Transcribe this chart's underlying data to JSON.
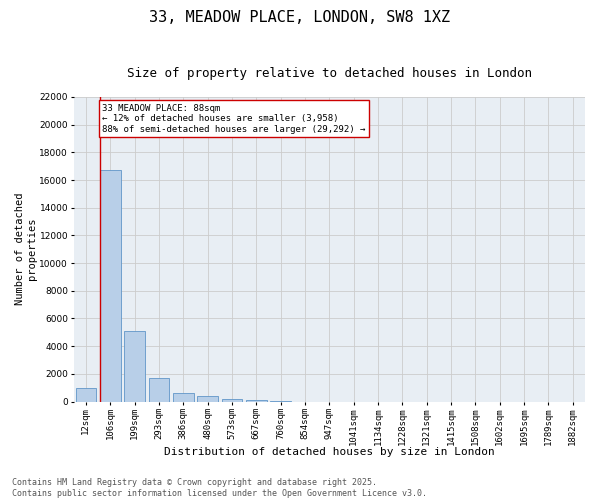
{
  "title": "33, MEADOW PLACE, LONDON, SW8 1XZ",
  "subtitle": "Size of property relative to detached houses in London",
  "xlabel": "Distribution of detached houses by size in London",
  "ylabel": "Number of detached\nproperties",
  "categories": [
    "12sqm",
    "106sqm",
    "199sqm",
    "293sqm",
    "386sqm",
    "480sqm",
    "573sqm",
    "667sqm",
    "760sqm",
    "854sqm",
    "947sqm",
    "1041sqm",
    "1134sqm",
    "1228sqm",
    "1321sqm",
    "1415sqm",
    "1508sqm",
    "1602sqm",
    "1695sqm",
    "1789sqm",
    "1882sqm"
  ],
  "values": [
    1000,
    16700,
    5100,
    1700,
    600,
    400,
    200,
    100,
    50,
    0,
    0,
    0,
    0,
    0,
    0,
    0,
    0,
    0,
    0,
    0,
    0
  ],
  "bar_color": "#b8cfe8",
  "bar_edge_color": "#6096c8",
  "vline_color": "#cc0000",
  "annotation_text": "33 MEADOW PLACE: 88sqm\n← 12% of detached houses are smaller (3,958)\n88% of semi-detached houses are larger (29,292) →",
  "annotation_box_color": "#cc0000",
  "ylim": [
    0,
    22000
  ],
  "yticks": [
    0,
    2000,
    4000,
    6000,
    8000,
    10000,
    12000,
    14000,
    16000,
    18000,
    20000,
    22000
  ],
  "grid_color": "#cccccc",
  "bg_color": "#e8eef4",
  "footer": "Contains HM Land Registry data © Crown copyright and database right 2025.\nContains public sector information licensed under the Open Government Licence v3.0.",
  "title_fontsize": 11,
  "subtitle_fontsize": 9,
  "xlabel_fontsize": 8,
  "ylabel_fontsize": 7.5,
  "tick_fontsize": 6.5,
  "annotation_fontsize": 6.5,
  "footer_fontsize": 6
}
